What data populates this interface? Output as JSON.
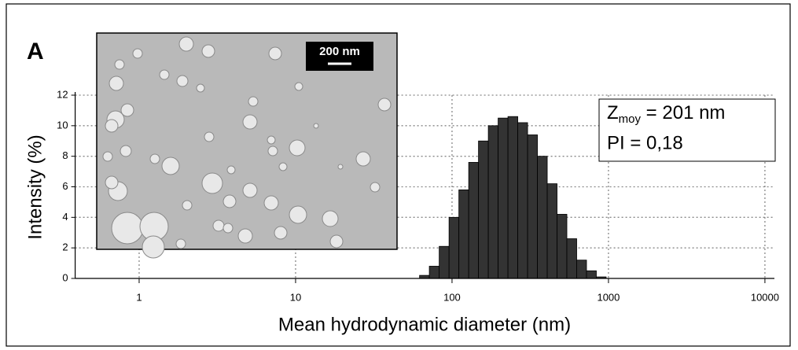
{
  "chart_data": {
    "type": "histogram",
    "panel_label": "A",
    "scale_bar_label": "200 nm",
    "annotation": {
      "z_symbol": "Z",
      "z_subscript": "moy",
      "z_value": " = 201 nm",
      "pi": "PI = 0,18"
    },
    "xlabel": "Mean hydrodynamic diameter (nm)",
    "ylabel": "Intensity (%)",
    "xscale": "log",
    "xlim": [
      0.39,
      11500
    ],
    "ylim": [
      0,
      12
    ],
    "xticks": [
      1,
      10,
      100,
      1000,
      10000
    ],
    "yticks": [
      0,
      2,
      4,
      6,
      8,
      10,
      12
    ],
    "grid": true,
    "color": "#333333",
    "bins": [
      62,
      71.6,
      82.8,
      95.7,
      110.6,
      127.8,
      147.6,
      170.6,
      197.1,
      227.8,
      263.2,
      304.1,
      351.4,
      406.0,
      469.2,
      542.1,
      626.4,
      723.8,
      836.4,
      966.4
    ],
    "values": [
      0.2,
      0.8,
      2.1,
      4.0,
      5.8,
      7.6,
      9.0,
      10.0,
      10.5,
      10.6,
      10.2,
      9.4,
      8.0,
      6.2,
      4.2,
      2.6,
      1.2,
      0.5,
      0.1
    ]
  }
}
